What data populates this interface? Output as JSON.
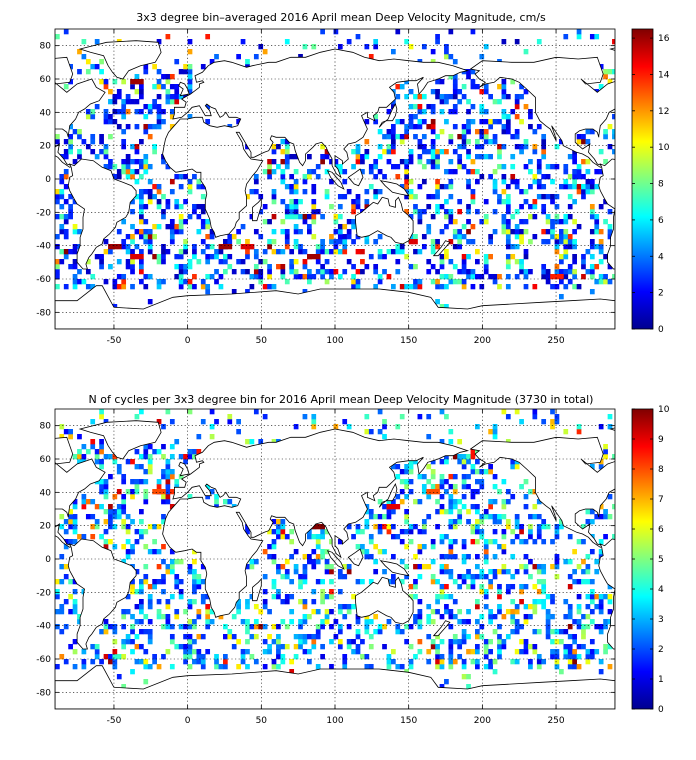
{
  "chart_data": [
    {
      "type": "heatmap",
      "title": "3x3 degree bin–averaged 2016 April mean Deep Velocity Magnitude, cm/s",
      "xlim": [
        -90,
        290
      ],
      "ylim": [
        -90,
        90
      ],
      "xticks": [
        -50,
        0,
        50,
        100,
        150,
        200,
        250
      ],
      "yticks": [
        -80,
        -60,
        -40,
        -20,
        0,
        20,
        40,
        60,
        80
      ],
      "grid": true,
      "colorbar": {
        "range": [
          0,
          16.5
        ],
        "ticks": [
          0,
          2,
          4,
          6,
          8,
          10,
          12,
          14,
          16
        ],
        "colormap": "jet"
      },
      "bin_size_deg": 3,
      "cell_value_range": [
        0,
        16.5
      ],
      "hot_spots": [
        {
          "lon": -35,
          "lat": 57,
          "value": 16
        },
        {
          "lon": -50,
          "lat": -42,
          "value": 16
        },
        {
          "lon": -35,
          "lat": -48,
          "value": 15
        },
        {
          "lon": 25,
          "lat": -40,
          "value": 16
        },
        {
          "lon": 40,
          "lat": -42,
          "value": 15
        },
        {
          "lon": 85,
          "lat": -48,
          "value": 16
        },
        {
          "lon": 150,
          "lat": -38,
          "value": 15
        },
        {
          "lon": 250,
          "lat": -58,
          "value": 14
        }
      ]
    },
    {
      "type": "heatmap",
      "title": "N of cycles per 3x3 degree bin for 2016 April mean Deep Velocity Magnitude (3730 in total)",
      "xlim": [
        -90,
        290
      ],
      "ylim": [
        -90,
        90
      ],
      "xticks": [
        -50,
        0,
        50,
        100,
        150,
        200,
        250
      ],
      "yticks": [
        -80,
        -60,
        -40,
        -20,
        0,
        20,
        40,
        60,
        80
      ],
      "grid": true,
      "colorbar": {
        "range": [
          0,
          10
        ],
        "ticks": [
          0,
          1,
          2,
          3,
          4,
          5,
          6,
          7,
          8,
          9,
          10
        ],
        "colormap": "jet"
      },
      "bin_size_deg": 3,
      "cell_value_range": [
        1,
        10
      ],
      "hot_spots": [
        {
          "lon": 88,
          "lat": 18,
          "value": 10
        },
        {
          "lon": 140,
          "lat": 30,
          "value": 9
        },
        {
          "lon": -20,
          "lat": 40,
          "value": 8
        },
        {
          "lon": 165,
          "lat": 40,
          "value": 8
        }
      ]
    }
  ]
}
